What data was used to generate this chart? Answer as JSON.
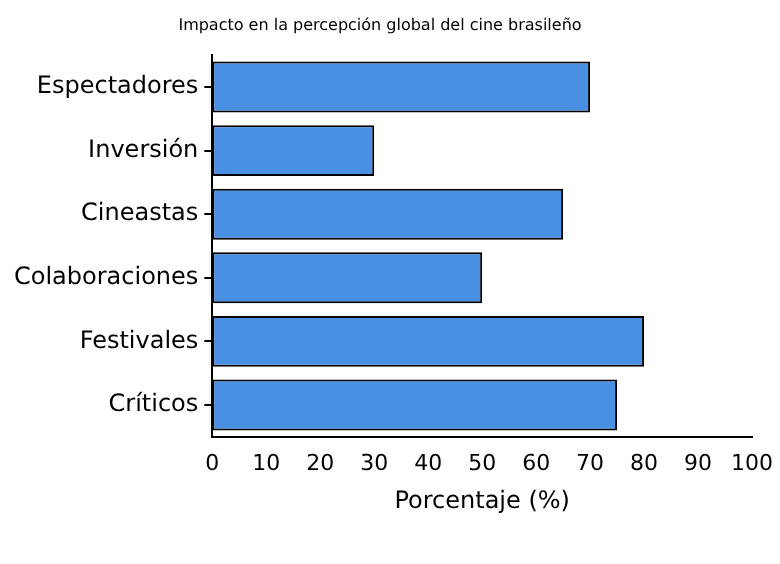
{
  "chart_data": {
    "type": "bar",
    "orientation": "horizontal",
    "title": "Impacto en la percepción global del cine brasileño",
    "xlabel": "Porcentaje (%)",
    "categories": [
      "Espectadores",
      "Inversión",
      "Cineastas",
      "Colaboraciones",
      "Festivales",
      "Críticos"
    ],
    "values": [
      70,
      30,
      65,
      50,
      80,
      75
    ],
    "color": "#4a90e2",
    "xlim": [
      0,
      100
    ],
    "xticks": [
      0,
      10,
      20,
      30,
      40,
      50,
      60,
      70,
      80,
      90,
      100
    ],
    "grid": false,
    "legend": false
  }
}
